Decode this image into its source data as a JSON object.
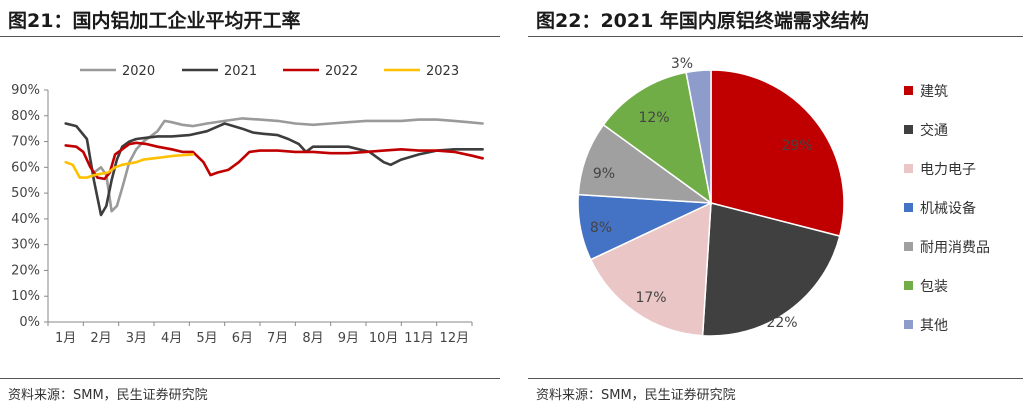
{
  "left": {
    "title": "图21：国内铝加工企业平均开工率",
    "source": "资料来源：SMM，民生证券研究院"
  },
  "right": {
    "title": "图22：2021 年国内原铝终端需求结构",
    "source": "资料来源：SMM，民生证券研究院"
  },
  "chart_data": [
    {
      "type": "line",
      "title": "图21：国内铝加工企业平均开工率",
      "categories": [
        "1月",
        "2月",
        "3月",
        "4月",
        "5月",
        "6月",
        "7月",
        "8月",
        "9月",
        "10月",
        "11月",
        "12月"
      ],
      "ylim": [
        0,
        90
      ],
      "yticks": [
        "0%",
        "10%",
        "20%",
        "30%",
        "40%",
        "50%",
        "60%",
        "70%",
        "80%",
        "90%"
      ],
      "grid": false,
      "legend": "top",
      "series": [
        {
          "name": "2020",
          "color": "#9a9a9a",
          "x": [
            1.8,
            2.0,
            2.15,
            2.3,
            2.45,
            2.6,
            2.8,
            3.0,
            3.2,
            3.4,
            3.6,
            3.8,
            4.0,
            4.3,
            4.6,
            5.0,
            5.5,
            6.0,
            6.5,
            7.0,
            7.5,
            8.0,
            8.5,
            9.0,
            9.5,
            10.0,
            10.5,
            11.0,
            11.5,
            12.0,
            12.4,
            12.8
          ],
          "y": [
            58,
            60,
            57,
            43,
            45,
            52,
            62,
            67,
            70,
            72,
            74,
            78,
            77.5,
            76.5,
            76,
            77,
            78,
            79,
            78.5,
            78,
            77,
            76.5,
            77,
            77.5,
            78,
            78,
            78,
            78.5,
            78.5,
            78,
            77.5,
            77
          ]
        },
        {
          "name": "2021",
          "color": "#3d3d3d",
          "x": [
            1.0,
            1.3,
            1.6,
            1.8,
            2.0,
            2.15,
            2.3,
            2.45,
            2.6,
            2.8,
            3.0,
            3.3,
            3.6,
            4.0,
            4.5,
            5.0,
            5.5,
            6.0,
            6.3,
            6.6,
            7.0,
            7.3,
            7.6,
            7.8,
            8.0,
            8.5,
            9.0,
            9.3,
            9.6,
            10.0,
            10.2,
            10.5,
            11.0,
            11.5,
            12.0,
            12.5,
            12.8
          ],
          "y": [
            77,
            76,
            71,
            55,
            41.5,
            45,
            55,
            63,
            68,
            70,
            71,
            71.5,
            72,
            72,
            72.5,
            74,
            77,
            75,
            73.5,
            73,
            72.5,
            71,
            69,
            66,
            68,
            68,
            68,
            67,
            66,
            62,
            61,
            63,
            65,
            66.5,
            67,
            67,
            67
          ]
        },
        {
          "name": "2022",
          "color": "#c00000",
          "x": [
            1.0,
            1.3,
            1.5,
            1.7,
            1.9,
            2.1,
            2.25,
            2.4,
            2.6,
            2.8,
            3.0,
            3.3,
            3.6,
            4.0,
            4.3,
            4.6,
            4.9,
            5.1,
            5.3,
            5.6,
            5.9,
            6.2,
            6.5,
            7.0,
            7.5,
            8.0,
            8.5,
            9.0,
            9.5,
            10.0,
            10.5,
            11.0,
            11.5,
            12.0,
            12.5,
            12.8
          ],
          "y": [
            68.5,
            68,
            66,
            60,
            56,
            55.5,
            58,
            65,
            67,
            69,
            69.5,
            69,
            68,
            67,
            66,
            66,
            62,
            57,
            58,
            59,
            62,
            66,
            66.5,
            66.5,
            66,
            66,
            65.5,
            65.5,
            66,
            66.5,
            67,
            66.5,
            66.5,
            66,
            64.5,
            63.5
          ]
        },
        {
          "name": "2023",
          "color": "#ffc000",
          "x": [
            1.0,
            1.2,
            1.4,
            1.6,
            1.8,
            2.0,
            2.2,
            2.4,
            2.6,
            2.8,
            3.0,
            3.2,
            3.5,
            3.8,
            4.1,
            4.4,
            4.6
          ],
          "y": [
            62,
            61,
            56,
            56,
            57,
            57.5,
            58,
            60,
            61,
            61.5,
            62,
            63,
            63.5,
            64,
            64.5,
            64.8,
            65
          ]
        }
      ]
    },
    {
      "type": "pie",
      "title": "图22：2021 年国内原铝终端需求结构",
      "legend": "right",
      "slices": [
        {
          "name": "建筑",
          "value": 29,
          "label": "29%",
          "color": "#c00000"
        },
        {
          "name": "交通",
          "value": 22,
          "label": "22%",
          "color": "#404040"
        },
        {
          "name": "电力电子",
          "value": 17,
          "label": "17%",
          "color": "#ebc6c6"
        },
        {
          "name": "机械设备",
          "value": 8,
          "label": "8%",
          "color": "#4472c4"
        },
        {
          "name": "耐用消费品",
          "value": 9,
          "label": "9%",
          "color": "#a0a0a0"
        },
        {
          "name": "包装",
          "value": 12,
          "label": "12%",
          "color": "#70ad47"
        },
        {
          "name": "其他",
          "value": 3,
          "label": "3%",
          "color": "#8e9ccc"
        }
      ]
    }
  ]
}
